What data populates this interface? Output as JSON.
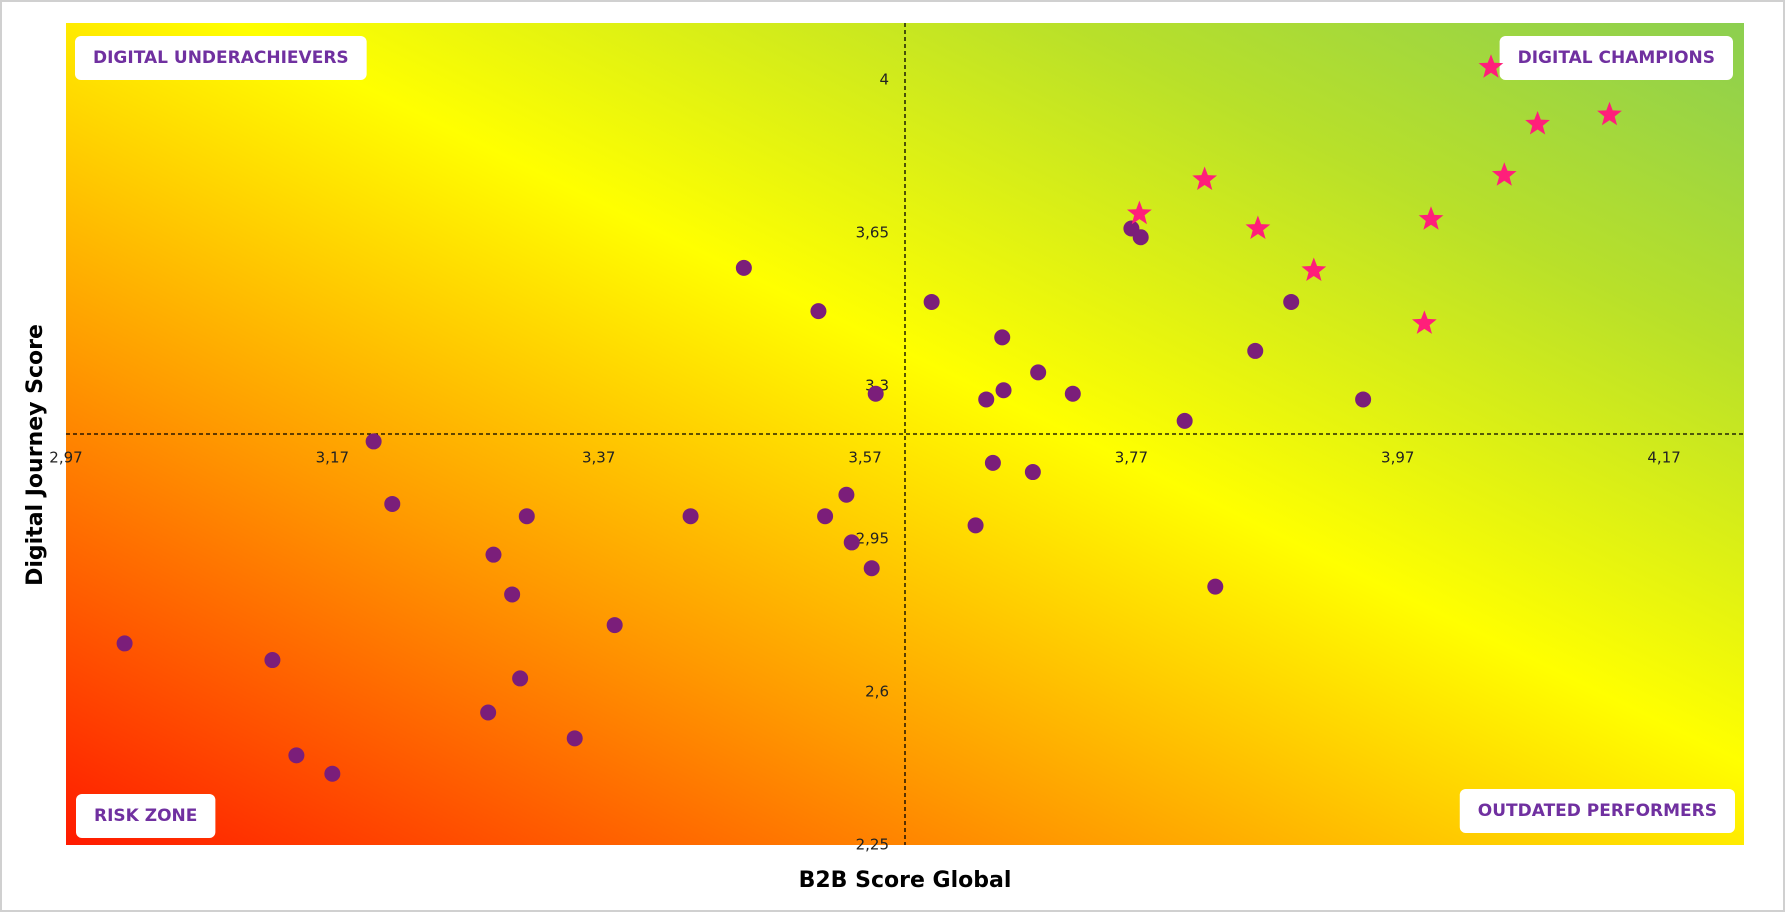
{
  "chart_data": {
    "type": "scatter",
    "x_label": "B2B Score Global",
    "y_label": "Digital Journey Score",
    "xlim": [
      2.97,
      4.23
    ],
    "ylim": [
      2.25,
      4.13
    ],
    "xticks": [
      {
        "value": 2.97,
        "label": "2,97"
      },
      {
        "value": 3.17,
        "label": "3,17"
      },
      {
        "value": 3.37,
        "label": "3,37"
      },
      {
        "value": 3.57,
        "label": "3,57"
      },
      {
        "value": 3.77,
        "label": "3,77"
      },
      {
        "value": 3.97,
        "label": "3,97"
      },
      {
        "value": 4.17,
        "label": "4,17"
      }
    ],
    "yticks": [
      {
        "value": 2.25,
        "label": "2,25"
      },
      {
        "value": 2.6,
        "label": "2,6"
      },
      {
        "value": 2.95,
        "label": "2,95"
      },
      {
        "value": 3.3,
        "label": "3,3"
      },
      {
        "value": 3.65,
        "label": "3,65"
      },
      4
    ],
    "y_axis_crosses_x": 3.6,
    "x_axis_crosses_y": 3.19,
    "background": [
      "#ff1a00",
      "#ff9a00",
      "#ffff00",
      "#b8e02a",
      "#8ccf50"
    ],
    "quadrant_labels": {
      "top_left": "DIGITAL UNDERACHIEVERS",
      "top_right": "DIGITAL CHAMPIONS",
      "bottom_left": "RISK ZONE",
      "bottom_right": "OUTDATED PERFORMERS"
    },
    "series": [
      {
        "marker": "circle",
        "color": "#7b1e7a",
        "x": [
          3.014,
          3.125,
          3.143,
          3.17,
          3.201,
          3.215,
          3.291,
          3.316,
          3.305,
          3.311,
          3.287,
          3.352,
          3.382,
          3.439,
          3.479,
          3.535,
          3.578,
          3.54,
          3.556,
          3.56,
          3.575,
          3.62,
          3.673,
          3.661,
          3.674,
          3.7,
          3.726,
          3.666,
          3.696,
          3.653,
          3.77,
          3.777,
          3.81,
          3.833,
          3.863,
          3.89,
          3.944
        ],
        "values": [
          2.711,
          2.673,
          2.455,
          2.413,
          3.173,
          3.03,
          2.914,
          3.002,
          2.823,
          2.631,
          2.553,
          2.494,
          2.753,
          3.002,
          3.57,
          3.471,
          3.282,
          3.002,
          3.051,
          2.942,
          2.883,
          3.492,
          3.411,
          3.269,
          3.29,
          3.331,
          3.282,
          3.124,
          3.103,
          2.981,
          3.66,
          3.64,
          3.22,
          2.841,
          3.38,
          3.492,
          3.269
        ]
      },
      {
        "marker": "star",
        "color": "#ff1f7a",
        "x": [
          3.776,
          3.825,
          3.865,
          3.907,
          3.995,
          3.99,
          4.04,
          4.05,
          4.075,
          4.129
        ],
        "values": [
          3.694,
          3.772,
          3.66,
          3.564,
          3.681,
          3.443,
          4.029,
          3.782,
          3.899,
          3.92
        ]
      }
    ]
  }
}
